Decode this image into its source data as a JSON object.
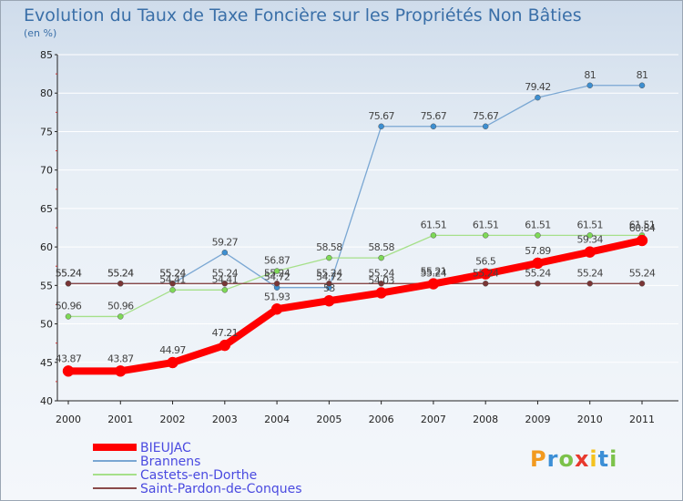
{
  "chart_data": {
    "type": "line",
    "title": "Evolution du Taux de Taxe Foncière sur les Propriétés Non Bâties",
    "ylabel": "(en %)",
    "xlabel": "",
    "ylim": [
      40,
      85
    ],
    "yticks": [
      40,
      45,
      50,
      55,
      60,
      65,
      70,
      75,
      80,
      85
    ],
    "categories": [
      "2000",
      "2001",
      "2002",
      "2003",
      "2004",
      "2005",
      "2006",
      "2007",
      "2008",
      "2009",
      "2010",
      "2011"
    ],
    "series": [
      {
        "name": "Brannens",
        "color": "#7aa7d3",
        "marker": "#3d8fd1",
        "width": 1.3,
        "values": [
          55.24,
          55.24,
          55.24,
          59.27,
          54.72,
          54.72,
          75.67,
          75.67,
          75.67,
          79.42,
          81,
          81
        ],
        "labels": [
          "55.24",
          "55.24",
          "55.24",
          "59.27",
          "54.72",
          "54.72",
          "75.67",
          "75.67",
          "75.67",
          "79.42",
          "81",
          "81"
        ]
      },
      {
        "name": "Castets-en-Dorthe",
        "color": "#a6e08a",
        "marker": "#7ed957",
        "width": 1.3,
        "values": [
          50.96,
          50.96,
          54.41,
          54.41,
          56.87,
          58.58,
          58.58,
          61.51,
          61.51,
          61.51,
          61.51,
          61.51
        ],
        "labels": [
          "50.96",
          "50.96",
          "54.41",
          "54.41",
          "56.87",
          "58.58",
          "58.58",
          "61.51",
          "61.51",
          "61.51",
          "61.51",
          "61.51"
        ]
      },
      {
        "name": "Saint-Pardon-de-Conques",
        "color": "#8a4a4a",
        "marker": "#7a3535",
        "width": 1.3,
        "values": [
          55.24,
          55.24,
          55.24,
          55.24,
          55.24,
          55.24,
          55.24,
          55.24,
          55.24,
          55.24,
          55.24,
          55.24
        ],
        "labels": [
          "55.24",
          "55.24",
          "55.24",
          "55.24",
          "55.24",
          "55.24",
          "55.24",
          "55.24",
          "55.24",
          "55.24",
          "55.24",
          "55.24"
        ]
      },
      {
        "name": "BIEUJAC",
        "color": "#ff0000",
        "marker": "#ff0000",
        "width": 8,
        "values": [
          43.87,
          43.87,
          44.97,
          47.21,
          51.93,
          53,
          54.03,
          55.21,
          56.5,
          57.89,
          59.34,
          60.84
        ],
        "labels": [
          "43.87",
          "43.87",
          "44.97",
          "47.21",
          "51.93",
          "53",
          "54.03",
          "55.21",
          "56.5",
          "57.89",
          "59.34",
          "60.84"
        ]
      }
    ],
    "legend": [
      "BIEUJAC",
      "Brannens",
      "Castets-en-Dorthe",
      "Saint-Pardon-de-Conques"
    ],
    "legend_position": "bottom-left"
  },
  "logo": {
    "letters": [
      "P",
      "r",
      "o",
      "x",
      "i",
      "t",
      "i"
    ],
    "colors": [
      "#f29a1f",
      "#3c8fd6",
      "#7cc24a",
      "#e8392d",
      "#f4c21e",
      "#3c8fd6",
      "#7cc24a"
    ]
  }
}
